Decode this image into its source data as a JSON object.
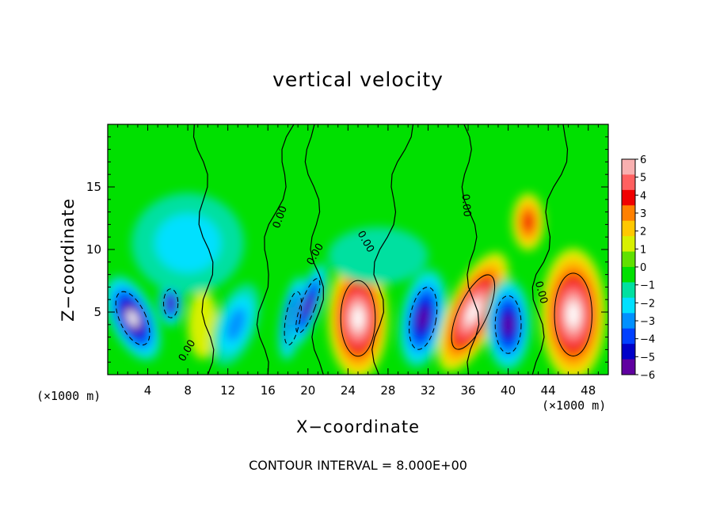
{
  "chart_data": {
    "type": "heatmap",
    "title": "vertical velocity",
    "xlabel": "X−coordinate",
    "ylabel": "Z−coordinate",
    "x_unit_left": "(×1000 m)",
    "x_unit_right": "(×1000 m)",
    "x_ticks": [
      4,
      8,
      12,
      16,
      20,
      24,
      28,
      32,
      36,
      40,
      44,
      48
    ],
    "y_ticks": [
      5,
      10,
      15
    ],
    "xlim": [
      0,
      50
    ],
    "ylim": [
      0,
      20
    ],
    "colorbar": {
      "ticks": [
        "6",
        "5",
        "4",
        "3",
        "2",
        "1",
        "0",
        "−1",
        "−2",
        "−3",
        "−4",
        "−5",
        "−6"
      ],
      "range": [
        -6,
        6
      ],
      "colors": [
        "#f8b0b0",
        "#ff6060",
        "#f00000",
        "#ff8000",
        "#ffc800",
        "#d8f000",
        "#60e000",
        "#00e000",
        "#00e0a0",
        "#00e0ff",
        "#0090ff",
        "#0040ff",
        "#0000c8",
        "#6000a0"
      ]
    },
    "contour_labels": [
      "0.00",
      "0.00",
      "0.00",
      "0.00",
      "0.00",
      "0.00"
    ],
    "contour_interval_text": "CONTOUR INTERVAL =  8.000E+00",
    "cells": [
      {
        "x": 2.5,
        "z": 4.5,
        "value": -8,
        "rx": 1.8,
        "rz": 3.2,
        "tilt": -25
      },
      {
        "x": 6.3,
        "z": 5.7,
        "value": -6,
        "rx": 1.0,
        "rz": 1.6,
        "tilt": 0
      },
      {
        "x": 9.5,
        "z": 4.0,
        "value": 1.5,
        "rx": 1.2,
        "rz": 2.4,
        "tilt": 0
      },
      {
        "x": 12.8,
        "z": 4.0,
        "value": -3.5,
        "rx": 1.6,
        "rz": 3.0,
        "tilt": 20
      },
      {
        "x": 18.5,
        "z": 4.5,
        "value": -7,
        "rx": 1.0,
        "rz": 3.0,
        "tilt": 10
      },
      {
        "x": 20.0,
        "z": 5.5,
        "value": -7,
        "rx": 1.0,
        "rz": 3.2,
        "tilt": 20
      },
      {
        "x": 25.0,
        "z": 4.5,
        "value": 9,
        "rx": 2.4,
        "rz": 4.2,
        "tilt": 0
      },
      {
        "x": 31.5,
        "z": 4.5,
        "value": -7,
        "rx": 1.8,
        "rz": 3.5,
        "tilt": 10
      },
      {
        "x": 36.5,
        "z": 5.0,
        "value": 8,
        "rx": 2.0,
        "rz": 4.5,
        "tilt": 25
      },
      {
        "x": 40.0,
        "z": 4.0,
        "value": -7,
        "rx": 1.8,
        "rz": 3.2,
        "tilt": 0
      },
      {
        "x": 46.5,
        "z": 4.8,
        "value": 9,
        "rx": 2.6,
        "rz": 4.6,
        "tilt": 0
      },
      {
        "x": 42.0,
        "z": 12.2,
        "value": 4,
        "rx": 1.3,
        "rz": 2.0,
        "tilt": 0
      },
      {
        "x": 8.0,
        "z": 10.5,
        "value": -2.5,
        "rx": 4.5,
        "rz": 3.5,
        "tilt": 0
      },
      {
        "x": 27.0,
        "z": 9.5,
        "value": -1.5,
        "rx": 4.0,
        "rz": 2.0,
        "tilt": 0
      }
    ]
  }
}
